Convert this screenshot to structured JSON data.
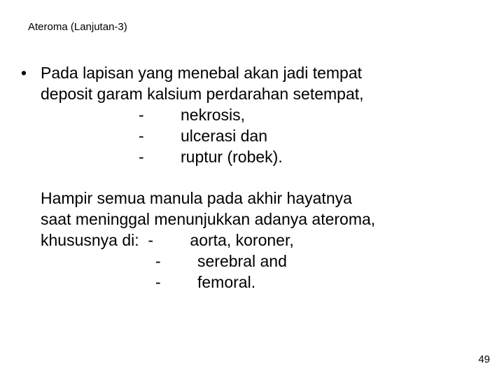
{
  "title": "Ateroma (Lanjutan-3)",
  "bullet_marker": "•",
  "para1": {
    "line1": "Pada lapisan yang menebal akan jadi tempat",
    "line2": "deposit garam kalsium perdarahan setempat,",
    "items": [
      {
        "dash": "-",
        "text": "nekrosis,"
      },
      {
        "dash": "-",
        "text": "ulcerasi dan"
      },
      {
        "dash": "-",
        "text": "ruptur (robek)."
      }
    ]
  },
  "para2": {
    "line1": "Hampir semua manula pada akhir hayatnya",
    "line2": "saat meninggal menunjukkan adanya ateroma,",
    "line3_prefix": "khususnya di:",
    "items": [
      {
        "dash": "-",
        "text": "aorta, koroner,"
      },
      {
        "dash": "-",
        "text": "serebral and"
      },
      {
        "dash": "-",
        "text": "femoral."
      }
    ]
  },
  "page_number": "49"
}
